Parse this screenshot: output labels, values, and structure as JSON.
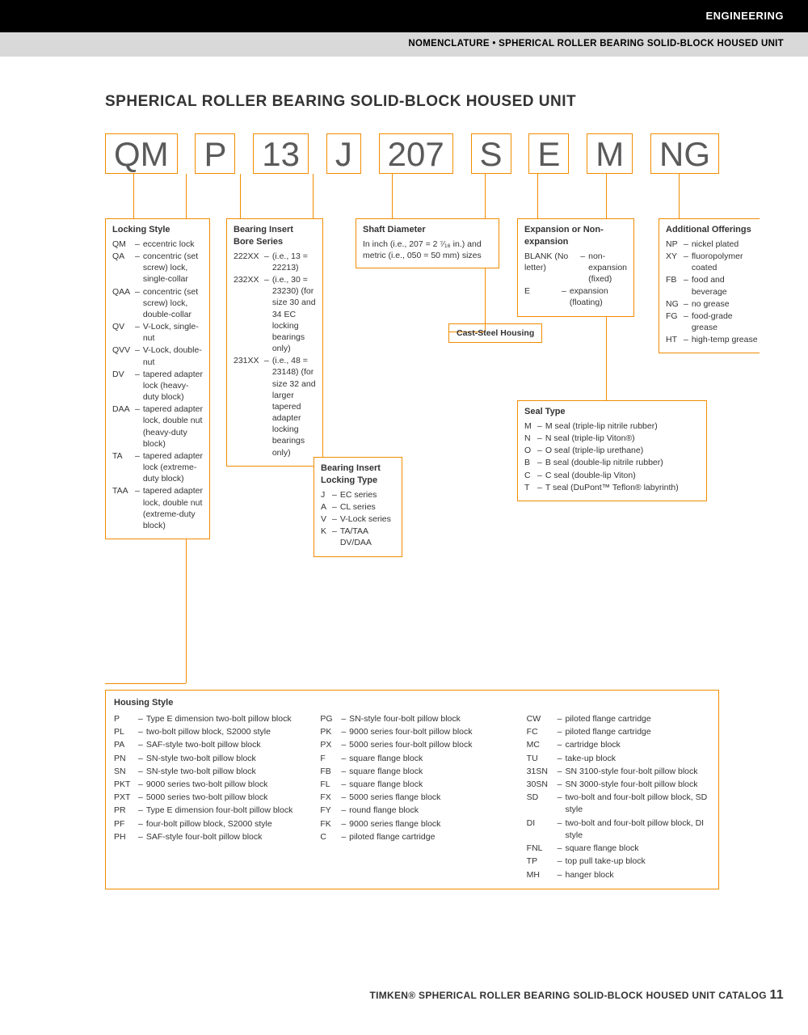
{
  "header": {
    "engineering": "ENGINEERING",
    "breadcrumb": "NOMENCLATURE • SPHERICAL ROLLER BEARING SOLID-BLOCK HOUSED UNIT"
  },
  "title": "SPHERICAL ROLLER BEARING SOLID-BLOCK HOUSED UNIT",
  "code_parts": [
    "QM",
    "P",
    "13",
    "J",
    "207",
    "S",
    "E",
    "M",
    "NG"
  ],
  "locking_style": {
    "title": "Locking Style",
    "items": [
      {
        "c": "QM",
        "d": "eccentric lock"
      },
      {
        "c": "QA",
        "d": "concentric (set screw) lock, single-collar"
      },
      {
        "c": "QAA",
        "d": "concentric (set screw) lock, double-collar"
      },
      {
        "c": "QV",
        "d": "V-Lock, single-nut"
      },
      {
        "c": "QVV",
        "d": "V-Lock, double-nut"
      },
      {
        "c": "DV",
        "d": "tapered adapter lock (heavy-duty block)"
      },
      {
        "c": "DAA",
        "d": "tapered adapter lock, double nut (heavy-duty block)"
      },
      {
        "c": "TA",
        "d": "tapered adapter lock (extreme-duty block)"
      },
      {
        "c": "TAA",
        "d": "tapered adapter lock, double nut (extreme-duty block)"
      }
    ]
  },
  "bore_series": {
    "title": "Bearing Insert Bore Series",
    "items": [
      {
        "c": "222XX",
        "d": "(i.e., 13 = 22213)"
      },
      {
        "c": "232XX",
        "d": "(i.e., 30 = 23230) (for size 30 and 34 EC locking bearings only)"
      },
      {
        "c": "231XX",
        "d": "(i.e., 48 = 23148) (for size 32 and larger tapered adapter locking bearings only)"
      }
    ]
  },
  "locking_type": {
    "title": "Bearing Insert Locking Type",
    "items": [
      {
        "c": "J",
        "d": "EC series"
      },
      {
        "c": "A",
        "d": "CL series"
      },
      {
        "c": "V",
        "d": "V-Lock series"
      },
      {
        "c": "K",
        "d": "TA/TAA DV/DAA"
      }
    ]
  },
  "shaft": {
    "title": "Shaft Diameter",
    "text": "In inch (i.e., 207 = 2 ⁷⁄₁₆ in.) and metric (i.e., 050 = 50 mm) sizes"
  },
  "cast_steel": "Cast-Steel Housing",
  "expansion": {
    "title": "Expansion or Non-expansion",
    "items": [
      {
        "c": "BLANK (No letter)",
        "d": "non-expansion (fixed)"
      },
      {
        "c": "E",
        "d": "expansion (floating)"
      }
    ]
  },
  "seal_type": {
    "title": "Seal Type",
    "items": [
      {
        "c": "M",
        "d": "M seal (triple-lip nitrile rubber)"
      },
      {
        "c": "N",
        "d": "N seal (triple-lip Viton®)"
      },
      {
        "c": "O",
        "d": "O seal (triple-lip urethane)"
      },
      {
        "c": "B",
        "d": "B seal (double-lip nitrile rubber)"
      },
      {
        "c": "C",
        "d": "C seal (double-lip Viton)"
      },
      {
        "c": "T",
        "d": "T seal (DuPont™ Teflon® labyrinth)"
      }
    ]
  },
  "additional": {
    "title": "Additional Offerings",
    "items": [
      {
        "c": "NP",
        "d": "nickel plated"
      },
      {
        "c": "XY",
        "d": "fluoropolymer coated"
      },
      {
        "c": "FB",
        "d": "food and beverage"
      },
      {
        "c": "NG",
        "d": "no grease"
      },
      {
        "c": "FG",
        "d": "food-grade grease"
      },
      {
        "c": "HT",
        "d": "high-temp grease"
      }
    ]
  },
  "housing": {
    "title": "Housing Style",
    "col1": [
      {
        "c": "P",
        "d": "Type E dimension two-bolt pillow block"
      },
      {
        "c": "PL",
        "d": "two-bolt pillow block, S2000 style"
      },
      {
        "c": "PA",
        "d": "SAF-style two-bolt pillow block"
      },
      {
        "c": "PN",
        "d": "SN-style two-bolt pillow block"
      },
      {
        "c": "SN",
        "d": "SN-style two-bolt pillow block"
      },
      {
        "c": "PKT",
        "d": "9000 series two-bolt pillow block"
      },
      {
        "c": "PXT",
        "d": "5000 series two-bolt pillow block"
      },
      {
        "c": "PR",
        "d": "Type E dimension four-bolt pillow block"
      },
      {
        "c": "PF",
        "d": "four-bolt pillow block, S2000 style"
      },
      {
        "c": "PH",
        "d": "SAF-style four-bolt pillow block"
      }
    ],
    "col2": [
      {
        "c": "PG",
        "d": "SN-style four-bolt pillow block"
      },
      {
        "c": "PK",
        "d": "9000 series four-bolt pillow block"
      },
      {
        "c": "PX",
        "d": "5000 series four-bolt pillow block"
      },
      {
        "c": "F",
        "d": "square flange block"
      },
      {
        "c": "FB",
        "d": "square flange block"
      },
      {
        "c": "FL",
        "d": "square flange block"
      },
      {
        "c": "FX",
        "d": "5000 series flange block"
      },
      {
        "c": "FY",
        "d": "round flange block"
      },
      {
        "c": "FK",
        "d": "9000 series flange block"
      },
      {
        "c": "C",
        "d": "piloted flange cartridge"
      }
    ],
    "col3": [
      {
        "c": "CW",
        "d": "piloted flange cartridge"
      },
      {
        "c": "FC",
        "d": "piloted flange cartridge"
      },
      {
        "c": "MC",
        "d": "cartridge block"
      },
      {
        "c": "TU",
        "d": "take-up block"
      },
      {
        "c": "31SN",
        "d": "SN 3100-style four-bolt pillow block"
      },
      {
        "c": "30SN",
        "d": "SN 3000-style four-bolt pillow block"
      },
      {
        "c": "SD",
        "d": "two-bolt and four-bolt pillow block, SD style"
      },
      {
        "c": "DI",
        "d": "two-bolt and four-bolt pillow block, DI style"
      },
      {
        "c": "FNL",
        "d": "square flange block"
      },
      {
        "c": "TP",
        "d": "top pull take-up block"
      },
      {
        "c": "MH",
        "d": "hanger block"
      }
    ]
  },
  "footer": {
    "text": "TIMKEN® SPHERICAL ROLLER BEARING SOLID-BLOCK HOUSED UNIT CATALOG",
    "page": "11"
  }
}
